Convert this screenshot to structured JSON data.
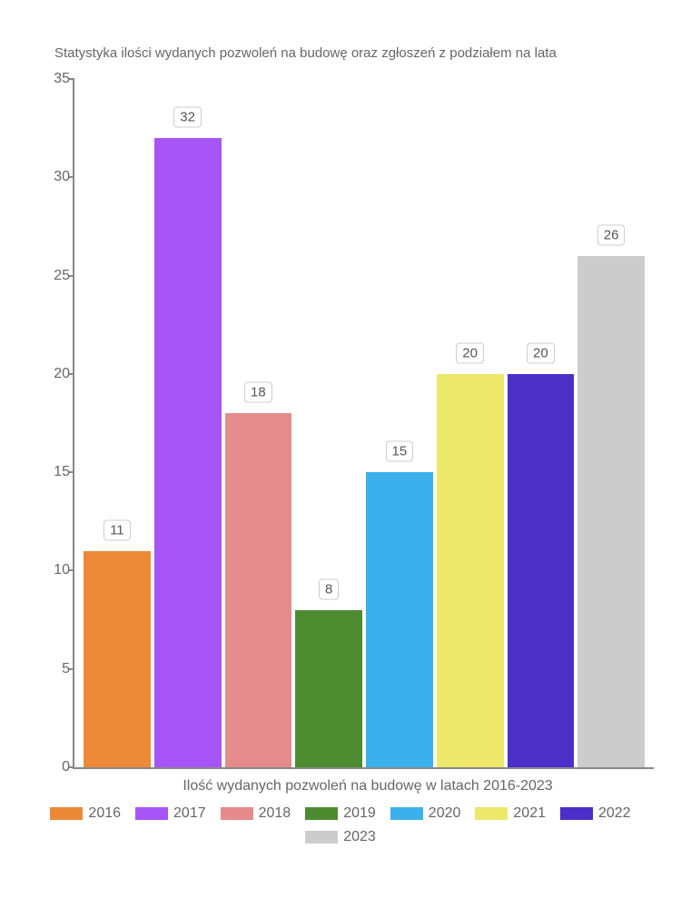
{
  "chart": {
    "type": "bar",
    "title": "Statystyka ilości wydanych pozwoleń na budowę oraz zgłoszeń z podziałem na lata",
    "title_fontsize": 15,
    "title_color": "#666666",
    "xlabel": "Ilość wydanych pozwoleń na budowę w latach 2016-2023",
    "label_fontsize": 16,
    "label_color": "#666666",
    "ylim": [
      0,
      35
    ],
    "ytick_step": 5,
    "yticks": [
      0,
      5,
      10,
      15,
      20,
      25,
      30,
      35
    ],
    "axis_color": "#888888",
    "axis_width": 2,
    "background_color": "#ffffff",
    "bar_width": 1.0,
    "bars": [
      {
        "year": "2016",
        "value": 11,
        "color": "#ed8936"
      },
      {
        "year": "2017",
        "value": 32,
        "color": "#a855f7"
      },
      {
        "year": "2018",
        "value": 18,
        "color": "#e58b8b"
      },
      {
        "year": "2019",
        "value": 8,
        "color": "#4d8b31"
      },
      {
        "year": "2020",
        "value": 15,
        "color": "#3bb0ed"
      },
      {
        "year": "2021",
        "value": 20,
        "color": "#ede76a"
      },
      {
        "year": "2022",
        "value": 20,
        "color": "#4b2fc9"
      },
      {
        "year": "2023",
        "value": 26,
        "color": "#cccccc"
      }
    ],
    "value_label": {
      "background": "#ffffff",
      "border_color": "#cccccc",
      "border_radius": 4,
      "fontsize": 15,
      "color": "#555555"
    },
    "legend": {
      "swatch_width": 36,
      "swatch_height": 14,
      "fontsize": 16,
      "color": "#666666"
    }
  }
}
